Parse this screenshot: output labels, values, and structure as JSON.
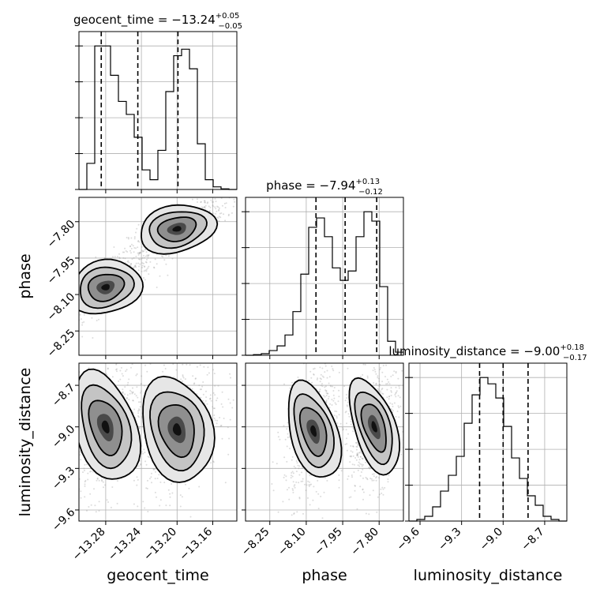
{
  "chart_data": {
    "type": "corner",
    "parameters": [
      "geocent_time",
      "phase",
      "luminosity_distance"
    ],
    "titles": [
      {
        "text": "geocent_time = −13.24",
        "plus": "+0.05",
        "minus": "−0.05"
      },
      {
        "text": "phase = −7.94",
        "plus": "+0.13",
        "minus": "−0.12"
      },
      {
        "text": "luminosity_distance = −9.00",
        "plus": "+0.18",
        "minus": "−0.17"
      }
    ],
    "ranges": [
      [
        -13.31,
        -13.133
      ],
      [
        -8.35,
        -7.7
      ],
      [
        -9.68,
        -8.54
      ]
    ],
    "ticks": {
      "geocent_time": {
        "values": [
          -13.28,
          -13.24,
          -13.2,
          -13.16
        ],
        "labels": [
          "−13.28",
          "−13.24",
          "−13.20",
          "−13.16"
        ]
      },
      "phase": {
        "values": [
          -8.25,
          -8.1,
          -7.95,
          -7.8
        ],
        "labels": [
          "−8.25",
          "−8.10",
          "−7.95",
          "−7.80"
        ]
      },
      "luminosity_distance": {
        "values": [
          -9.6,
          -9.3,
          -9.0,
          -8.7
        ],
        "labels": [
          "−9.6",
          "−9.3",
          "−9.0",
          "−8.7"
        ]
      }
    },
    "quantiles": [
      [
        -13.285,
        -13.244,
        -13.199
      ],
      [
        -8.06,
        -7.94,
        -7.81
      ],
      [
        -9.17,
        -9.0,
        -8.82
      ]
    ],
    "histograms": [
      {
        "bins": 20,
        "counts": [
          0,
          0.8,
          4.4,
          4.4,
          3.5,
          2.7,
          2.3,
          1.6,
          0.6,
          0.3,
          1.2,
          3.0,
          4.1,
          4.3,
          3.7,
          1.4,
          0.3,
          0.08,
          0.02,
          0
        ]
      },
      {
        "bins": 20,
        "counts": [
          0,
          0.02,
          0.05,
          0.15,
          0.3,
          0.65,
          1.4,
          2.6,
          4.1,
          4.4,
          3.8,
          2.8,
          2.4,
          2.7,
          3.8,
          4.6,
          4.3,
          2.2,
          0.45,
          0.1
        ]
      },
      {
        "bins": 20,
        "counts": [
          0,
          0.05,
          0.15,
          0.45,
          0.95,
          1.45,
          2.05,
          3.1,
          4.0,
          4.55,
          4.35,
          3.9,
          3.0,
          2.0,
          1.35,
          0.8,
          0.5,
          0.15,
          0.05,
          0
        ]
      }
    ],
    "modes": [
      {
        "dims": [
          0,
          1
        ],
        "centers": [
          [
            -13.28,
            -8.07
          ],
          [
            -13.2,
            -7.83
          ]
        ],
        "sds": [
          [
            0.017,
            0.045
          ],
          [
            0.018,
            0.04
          ]
        ],
        "corr": 0.75
      },
      {
        "dims": [
          0,
          2
        ],
        "centers": [
          [
            -13.28,
            -9.0
          ],
          [
            -13.2,
            -9.02
          ]
        ],
        "sds": [
          [
            0.014,
            0.17
          ],
          [
            0.016,
            0.16
          ]
        ],
        "corr": 0.35
      },
      {
        "dims": [
          1,
          2
        ],
        "centers": [
          [
            -8.07,
            -9.03
          ],
          [
            -7.82,
            -9.0
          ]
        ],
        "sds": [
          [
            0.04,
            0.15
          ],
          [
            0.035,
            0.15
          ]
        ],
        "corr": 0.3
      }
    ]
  }
}
